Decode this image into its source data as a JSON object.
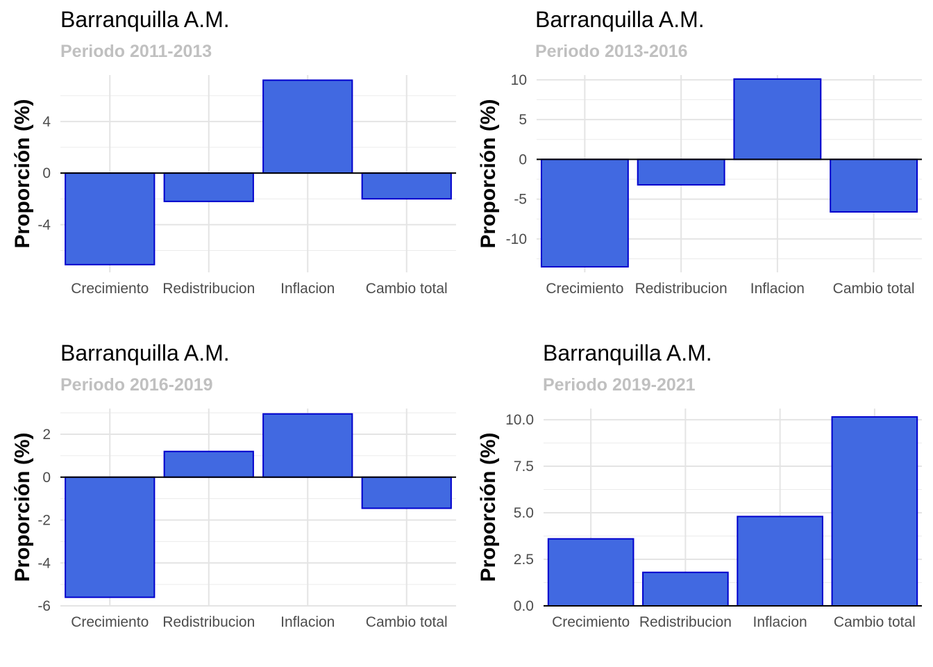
{
  "chart_data": [
    {
      "type": "bar",
      "title": "Barranquilla A.M.",
      "subtitle": "Periodo 2011-2013",
      "ylabel": "Proporción (%)",
      "xlabel": "",
      "categories": [
        "Crecimiento",
        "Redistribucion",
        "Inflacion",
        "Cambio total"
      ],
      "values": [
        -7.1,
        -2.2,
        7.2,
        -2.0
      ],
      "ylim": [
        -7.7,
        7.6
      ],
      "yticks": [
        -4,
        0,
        4
      ],
      "ytick_labels": [
        "-4",
        "0",
        "4"
      ],
      "grid": true,
      "colors": {
        "bar_fill": "#4169e1",
        "bar_stroke": "#0000cd"
      }
    },
    {
      "type": "bar",
      "title": "Barranquilla A.M.",
      "subtitle": "Periodo 2013-2016",
      "ylabel": "Proporción (%)",
      "xlabel": "",
      "categories": [
        "Crecimiento",
        "Redistribucion",
        "Inflacion",
        "Cambio total"
      ],
      "values": [
        -13.5,
        -3.2,
        10.1,
        -6.6
      ],
      "ylim": [
        -14.2,
        10.6
      ],
      "yticks": [
        -10,
        -5,
        0,
        5,
        10
      ],
      "ytick_labels": [
        "-10",
        "-5",
        "0",
        "5",
        "10"
      ],
      "grid": true,
      "colors": {
        "bar_fill": "#4169e1",
        "bar_stroke": "#0000cd"
      }
    },
    {
      "type": "bar",
      "title": "Barranquilla A.M.",
      "subtitle": "Periodo 2016-2019",
      "ylabel": "Proporción (%)",
      "xlabel": "",
      "categories": [
        "Crecimiento",
        "Redistribucion",
        "Inflacion",
        "Cambio total"
      ],
      "values": [
        -5.6,
        1.2,
        2.95,
        -1.45
      ],
      "ylim": [
        -6.0,
        3.2
      ],
      "yticks": [
        -6,
        -4,
        -2,
        0,
        2
      ],
      "ytick_labels": [
        "-6",
        "-4",
        "-2",
        "0",
        "2"
      ],
      "grid": true,
      "colors": {
        "bar_fill": "#4169e1",
        "bar_stroke": "#0000cd"
      }
    },
    {
      "type": "bar",
      "title": "Barranquilla A.M.",
      "subtitle": "Periodo 2019-2021",
      "ylabel": "Proporción (%)",
      "xlabel": "",
      "categories": [
        "Crecimiento",
        "Redistribucion",
        "Inflacion",
        "Cambio total"
      ],
      "values": [
        3.6,
        1.8,
        4.8,
        10.15
      ],
      "ylim": [
        0,
        10.6
      ],
      "yticks": [
        0,
        2.5,
        5,
        7.5,
        10
      ],
      "ytick_labels": [
        "0.0",
        "2.5",
        "5.0",
        "7.5",
        "10.0"
      ],
      "grid": true,
      "colors": {
        "bar_fill": "#4169e1",
        "bar_stroke": "#0000cd"
      }
    }
  ]
}
